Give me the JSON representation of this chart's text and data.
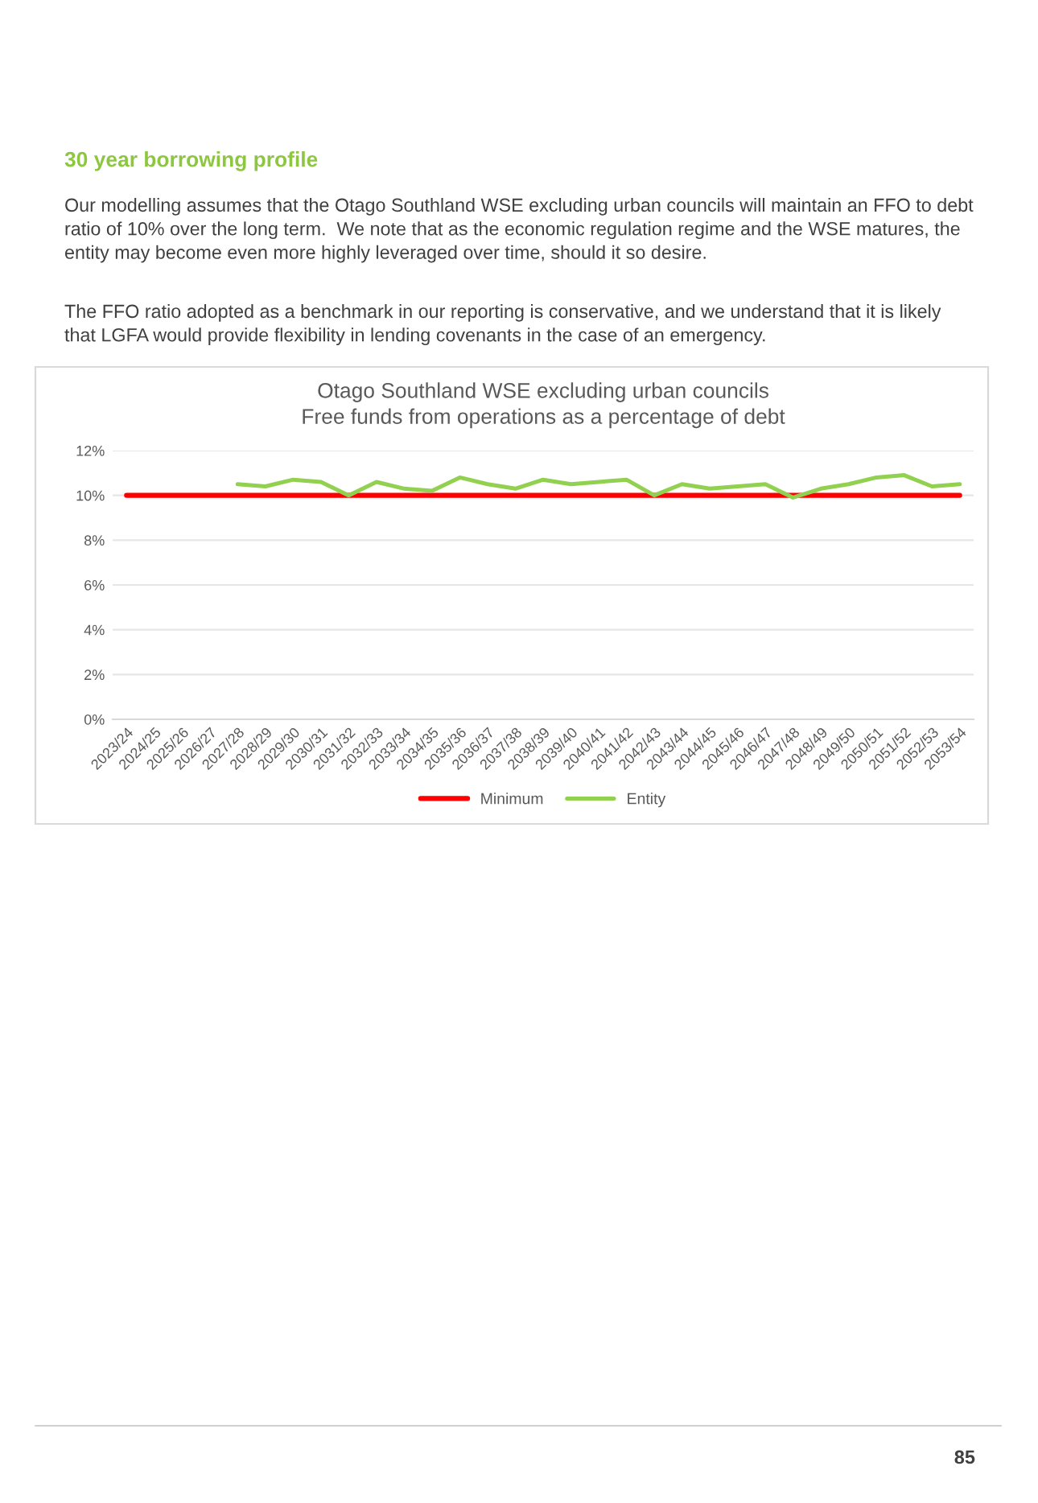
{
  "chart_data": {
    "type": "line",
    "title": "Otago Southland WSE excluding urban councils\nFree funds from operations as a percentage of debt",
    "categories": [
      "2023/24",
      "2024/25",
      "2025/26",
      "2026/27",
      "2027/28",
      "2028/29",
      "2029/30",
      "2030/31",
      "2031/32",
      "2032/33",
      "2033/34",
      "2034/35",
      "2035/36",
      "2036/37",
      "2037/38",
      "2038/39",
      "2039/40",
      "2040/41",
      "2041/42",
      "2042/43",
      "2043/44",
      "2044/45",
      "2045/46",
      "2046/47",
      "2047/48",
      "2048/49",
      "2049/50",
      "2050/51",
      "2051/52",
      "2052/53",
      "2053/54"
    ],
    "series": [
      {
        "name": "Minimum",
        "color": "#ff0000",
        "values": [
          10,
          10,
          10,
          10,
          10,
          10,
          10,
          10,
          10,
          10,
          10,
          10,
          10,
          10,
          10,
          10,
          10,
          10,
          10,
          10,
          10,
          10,
          10,
          10,
          10,
          10,
          10,
          10,
          10,
          10,
          10
        ]
      },
      {
        "name": "Entity",
        "color": "#92d050",
        "values": [
          null,
          null,
          null,
          null,
          10.5,
          10.4,
          10.7,
          10.6,
          10.0,
          10.6,
          10.3,
          10.2,
          10.8,
          10.5,
          10.3,
          10.7,
          10.5,
          10.6,
          10.7,
          10.0,
          10.5,
          10.3,
          10.4,
          10.5,
          9.9,
          10.3,
          10.5,
          10.8,
          10.9,
          10.4,
          10.5
        ]
      }
    ],
    "ylim": [
      0,
      12
    ],
    "yticks": [
      {
        "value": 0,
        "label": "0%"
      },
      {
        "value": 2,
        "label": "2%"
      },
      {
        "value": 4,
        "label": "4%"
      },
      {
        "value": 6,
        "label": "6%"
      },
      {
        "value": 8,
        "label": "8%"
      },
      {
        "value": 10,
        "label": "10%"
      },
      {
        "value": 12,
        "label": "12%"
      }
    ],
    "grid": "y",
    "legend": "bottom",
    "marker": "none",
    "line_style": "solid",
    "annotations": [
      "30 year borrowing profile",
      "Our modelling assumes that the Otago Southland WSE excluding urban councils will maintain an FFO to debt\nratio of 10% over the long term.  We note that as the economic regulation regime and the WSE matures, the\nentity may become even more highly leveraged over time, should it so desire.",
      "The FFO ratio adopted as a benchmark in our reporting is conservative, and we understand that it is likely\nthat LGFA would provide flexibility in lending covenants in the case of an emergency.",
      "85"
    ]
  }
}
